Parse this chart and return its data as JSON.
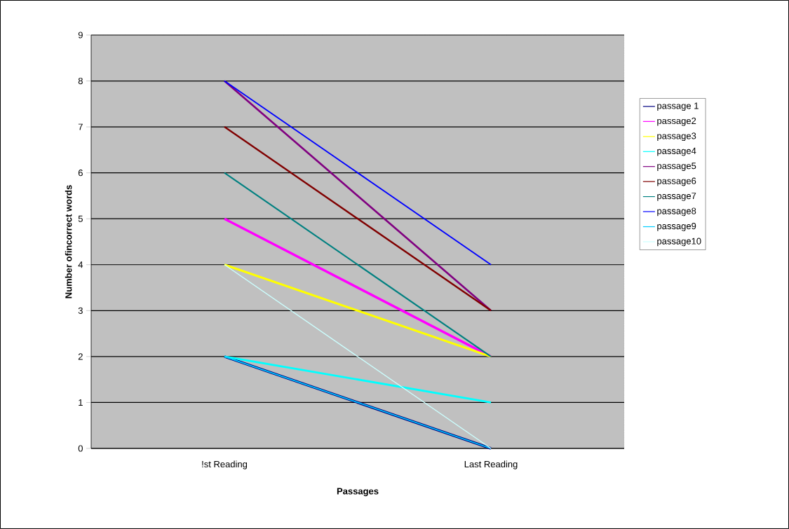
{
  "chart_data": {
    "type": "line",
    "xlabel": "Passages",
    "ylabel": "Number ofincorrect  words",
    "categories": [
      "!st Reading",
      "Last Reading"
    ],
    "series": [
      {
        "name": "passage 1",
        "color": "#000080",
        "values": [
          2,
          0
        ]
      },
      {
        "name": "passage2",
        "color": "#ff00ff",
        "values": [
          5,
          2
        ]
      },
      {
        "name": "passage3",
        "color": "#ffff00",
        "values": [
          4,
          2
        ]
      },
      {
        "name": "passage4",
        "color": "#00ffff",
        "values": [
          2,
          1
        ]
      },
      {
        "name": "passage5",
        "color": "#800080",
        "values": [
          8,
          3
        ]
      },
      {
        "name": "passage6",
        "color": "#800000",
        "values": [
          7,
          3
        ]
      },
      {
        "name": "passage7",
        "color": "#008080",
        "values": [
          6,
          2
        ]
      },
      {
        "name": "passage8",
        "color": "#0000ff",
        "values": [
          8,
          4
        ]
      },
      {
        "name": "passage9",
        "color": "#00ccff",
        "values": [
          2,
          0
        ]
      },
      {
        "name": "passage10",
        "color": "#ccffff",
        "values": [
          4,
          0
        ]
      }
    ],
    "ylim": [
      0,
      9
    ],
    "yticks": [
      0,
      1,
      2,
      3,
      4,
      5,
      6,
      7,
      8,
      9
    ],
    "grid": "y",
    "legend": "right"
  }
}
